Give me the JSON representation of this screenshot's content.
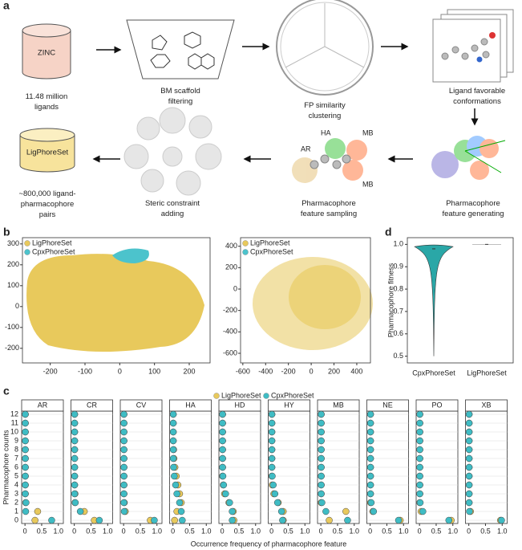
{
  "panel_labels": [
    "a",
    "b",
    "c",
    "d"
  ],
  "diagram": {
    "steps": [
      {
        "box": "ZINC",
        "caption": [
          "11.48 million",
          "ligands"
        ]
      },
      {
        "caption": [
          "BM scaffold",
          "filtering"
        ]
      },
      {
        "caption": [
          "FP similarity",
          "clustering"
        ]
      },
      {
        "caption": [
          "Ligand favorable",
          "conformations"
        ]
      },
      {
        "caption": [
          "Pharmacophore",
          "feature generating"
        ]
      },
      {
        "caption": [
          "Pharmacophore",
          "feature sampling"
        ],
        "tags": [
          "AR",
          "HA",
          "MB",
          "MB"
        ]
      },
      {
        "caption": [
          "Steric constraint",
          "adding"
        ]
      },
      {
        "box": "LigPhoreSet",
        "caption": [
          "~800,000 ligand-",
          "pharmacophore",
          "pairs"
        ]
      }
    ]
  },
  "chart_data": [
    {
      "type": "scatter",
      "series": [
        {
          "name": "LigPhoreSet",
          "color": "#e8c95c"
        },
        {
          "name": "CpxPhoreSet",
          "color": "#4cc3cc"
        }
      ],
      "xlim": [
        -280,
        260
      ],
      "ylim": [
        -270,
        330
      ],
      "xticks": [
        -200,
        -100,
        0,
        100,
        200
      ],
      "yticks": [
        -200,
        -100,
        0,
        100,
        200,
        300
      ]
    },
    {
      "type": "scatter",
      "series": [
        {
          "name": "LigPhoreSet",
          "color": "#e8c95c"
        },
        {
          "name": "CpxPhoreSet",
          "color": "#4cc3cc"
        }
      ],
      "xlim": [
        -620,
        520
      ],
      "ylim": [
        -690,
        480
      ],
      "xticks": [
        -600,
        -400,
        -200,
        0,
        200,
        400
      ],
      "yticks": [
        -600,
        -400,
        -200,
        0,
        200,
        400
      ]
    },
    {
      "type": "violin",
      "categories": [
        "CpxPhoreSet",
        "LigPhoreSet"
      ],
      "y_label": "Pharmacophore fitness",
      "series": [
        {
          "name": "CpxPhoreSet",
          "color": "#2aa7a7",
          "min": 0.5,
          "max": 1,
          "median": 0.98
        },
        {
          "name": "LigPhoreSet",
          "color": "#2aa7a7",
          "min": 1,
          "max": 1,
          "median": 1
        }
      ],
      "ylim": [
        0.47,
        1.03
      ],
      "yticks": [
        0.5,
        0.6,
        0.7,
        0.8,
        0.9,
        {
          "value": 1,
          "label": "1.0"
        }
      ]
    },
    {
      "type": "dot",
      "x_label": "Occurrence frequency of pharmacophore feature",
      "y_label": "Pharmacophore counts",
      "categories": [
        0,
        1,
        2,
        3,
        4,
        5,
        6,
        7,
        8,
        9,
        10,
        11,
        12
      ],
      "xlim": [
        -0.1,
        1.15
      ],
      "xticks": [
        0,
        0.5,
        {
          "value": 1,
          "label": "1.0"
        }
      ],
      "series": [
        {
          "name": "LigPhoreSet",
          "color": "#e8c95c"
        },
        {
          "name": "CpxPhoreSet",
          "color": "#3fbcc4"
        }
      ],
      "panels": [
        {
          "title": "AR",
          "values": [
            [
              0.3,
              0.38,
              0.02,
              0.01,
              0.01,
              0.01,
              0.01,
              0.01,
              0.01,
              0.01,
              0.01,
              0.01,
              0.01
            ],
            [
              0.8,
              0.02,
              0.03,
              0.01,
              0.01,
              0.01,
              0.01,
              0.01,
              0.01,
              0.01,
              0.01,
              0.01,
              0.01
            ]
          ]
        },
        {
          "title": "CR",
          "values": [
            [
              0.6,
              0.3,
              0.02,
              0.02,
              0.01,
              0.01,
              0.01,
              0.01,
              0.01,
              0.01,
              0.01,
              0.01,
              0.01
            ],
            [
              0.75,
              0.18,
              0.03,
              0.01,
              0.01,
              0.01,
              0.01,
              0.01,
              0.01,
              0.01,
              0.01,
              0.01,
              0.01
            ]
          ]
        },
        {
          "title": "CV",
          "values": [
            [
              0.8,
              0.05,
              0.02,
              0.01,
              0.01,
              0.01,
              0.01,
              0.01,
              0.01,
              0.01,
              0.01,
              0.01,
              0.01
            ],
            [
              0.92,
              0.02,
              0.01,
              0.01,
              0.01,
              0.01,
              0.01,
              0.01,
              0.01,
              0.01,
              0.01,
              0.01,
              0.01
            ]
          ]
        },
        {
          "title": "HA",
          "values": [
            [
              0.05,
              0.12,
              0.25,
              0.2,
              0.15,
              0.1,
              0.06,
              0.03,
              0.02,
              0.01,
              0.01,
              0.01,
              0.01
            ],
            [
              0.28,
              0.25,
              0.2,
              0.12,
              0.08,
              0.04,
              0.02,
              0.01,
              0.01,
              0.01,
              0.01,
              0.01,
              0.01
            ]
          ]
        },
        {
          "title": "HD",
          "values": [
            [
              0.35,
              0.33,
              0.2,
              0.07,
              0.03,
              0.01,
              0.01,
              0.01,
              0.01,
              0.01,
              0.01,
              0.01,
              0.01
            ],
            [
              0.3,
              0.3,
              0.22,
              0.1,
              0.04,
              0.02,
              0.01,
              0.01,
              0.01,
              0.01,
              0.01,
              0.01,
              0.01
            ]
          ]
        },
        {
          "title": "HY",
          "values": [
            [
              0.35,
              0.35,
              0.2,
              0.07,
              0.02,
              0.01,
              0.01,
              0.01,
              0.01,
              0.01,
              0.01,
              0.01,
              0.01
            ],
            [
              0.33,
              0.3,
              0.18,
              0.1,
              0.05,
              0.02,
              0.01,
              0.01,
              0.01,
              0.01,
              0.01,
              0.01,
              0.01
            ]
          ]
        },
        {
          "title": "MB",
          "values": [
            [
              0.25,
              0.75,
              0.01,
              0.01,
              0.01,
              0.01,
              0.01,
              0.01,
              0.01,
              0.01,
              0.01,
              0.01,
              0.01
            ],
            [
              0.8,
              0.15,
              0.03,
              0.01,
              0.01,
              0.01,
              0.01,
              0.01,
              0.01,
              0.01,
              0.01,
              0.01,
              0.01
            ]
          ]
        },
        {
          "title": "NE",
          "values": [
            [
              0.9,
              0.08,
              0.01,
              0.01,
              0.01,
              0.01,
              0.01,
              0.01,
              0.01,
              0.01,
              0.01,
              0.01,
              0.01
            ],
            [
              0.85,
              0.1,
              0.03,
              0.01,
              0.01,
              0.01,
              0.01,
              0.01,
              0.01,
              0.01,
              0.01,
              0.01,
              0.01
            ]
          ]
        },
        {
          "title": "PO",
          "values": [
            [
              0.95,
              0.05,
              0.01,
              0.01,
              0.01,
              0.01,
              0.01,
              0.01,
              0.01,
              0.01,
              0.01,
              0.01,
              0.01
            ],
            [
              0.88,
              0.1,
              0.02,
              0.01,
              0.01,
              0.01,
              0.01,
              0.01,
              0.01,
              0.01,
              0.01,
              0.01,
              0.01
            ]
          ]
        },
        {
          "title": "XB",
          "values": [
            [
              0.95,
              0.05,
              0.01,
              0.01,
              0.01,
              0.01,
              0.01,
              0.01,
              0.01,
              0.01,
              0.01,
              0.01,
              0.01
            ],
            [
              0.98,
              0.02,
              0.01,
              0.01,
              0.01,
              0.01,
              0.01,
              0.01,
              0.01,
              0.01,
              0.01,
              0.01,
              0.01
            ]
          ]
        }
      ]
    }
  ]
}
